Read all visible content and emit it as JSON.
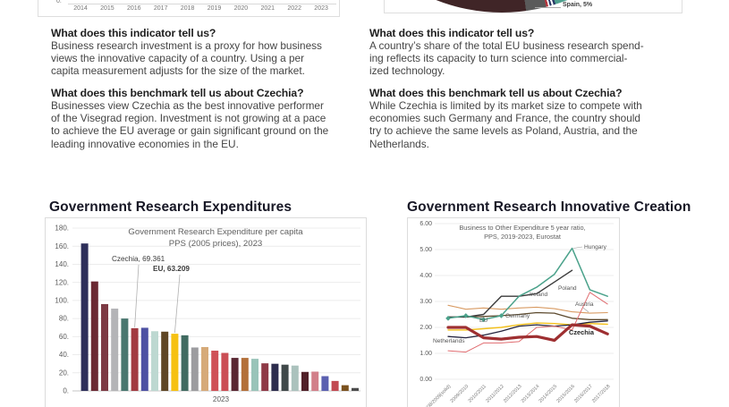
{
  "columns": {
    "left": {
      "indicator_heading": "What does this indicator tell us?",
      "indicator_body": "Business research investment is a proxy for how business\nviews the innovative capacity of a country. Using a per\ncapita measurement adjusts for the size of the market.",
      "benchmark_heading": "What does this benchmark tell us about Czechia?",
      "benchmark_body": "Businesses view Czechia as the best innovative performer\nof the Visegrad region. Investment is not growing at a pace\nto achieve the EU average or gain significant ground on the\nleading innovative economies in the EU."
    },
    "right": {
      "indicator_heading": "What does this indicator tell us?",
      "indicator_body": "A country’s share of the total EU business research spend-\ning reflects its capacity to turn science into commercial-\nized technology.",
      "benchmark_heading": "What does this benchmark tell us about Czechia?",
      "benchmark_body": "While Czechia is limited by its market size to compete with\neconomies such Germany and France, the country should\ntry to achieve the same levels as Poland, Austria, and the\nNetherlands."
    }
  },
  "sections": {
    "left_title": "Government Research Expenditures",
    "right_title": "Government Research Innovative Creation"
  },
  "top_left_chart": {
    "y_tick": "0.",
    "years": [
      "2014",
      "2015",
      "2016",
      "2017",
      "2018",
      "2019",
      "2020",
      "2021",
      "2022",
      "2023"
    ]
  },
  "top_right_chart": {
    "visible_label": "Spain, 5%",
    "slice_colors": {
      "maroon": "#402527",
      "gray": "#5a5a5a",
      "stripe_navy": "#2b3a67",
      "stripe_white": "#ffffff",
      "stripe_red": "#b5373f",
      "teal": "#4fa08f"
    }
  },
  "chart_data": [
    {
      "id": "business-rd-per-capita-cropped",
      "type": "bar",
      "note_visible_part": "x-axis only",
      "categories": [
        "2014",
        "2015",
        "2016",
        "2017",
        "2018",
        "2019",
        "2020",
        "2021",
        "2022",
        "2023"
      ],
      "visible_y_tick": "0."
    },
    {
      "id": "eu-business-research-share-pie-cropped",
      "type": "pie",
      "visible_labels": [
        {
          "label": "Spain",
          "value": 5,
          "text": "Spain, 5%"
        }
      ]
    },
    {
      "id": "gov-research-expenditure",
      "type": "bar",
      "title": "Government Research Expenditure per capita",
      "subtitle": "PPS (2005 prices), 2023",
      "xlabel": "2023",
      "ylim": [
        0,
        180
      ],
      "ytick_step": 20,
      "ytick_suffix": ".",
      "values": [
        163,
        121,
        96,
        91,
        80,
        69.361,
        69.8,
        66,
        65.5,
        63.209,
        61.5,
        48,
        48.5,
        44.5,
        42,
        36.5,
        36.5,
        35.5,
        30.5,
        30,
        29,
        28,
        21,
        21.3,
        16.3,
        11,
        6.3,
        3.2
      ],
      "colors": [
        "#2e2f5a",
        "#6b2933",
        "#7d3a44",
        "#b4b4b7",
        "#49776f",
        "#a23b41",
        "#4d51a3",
        "#bdd8d1",
        "#5f4625",
        "#f6c112",
        "#416b61",
        "#9c9c9f",
        "#d6aa79",
        "#cf5157",
        "#cb4e55",
        "#592732",
        "#b3703a",
        "#99c4b9",
        "#8f3a47",
        "#2d2d4e",
        "#40494a",
        "#abc2bd",
        "#512129",
        "#d2808a",
        "#5b60b0",
        "#c24a52",
        "#7b521f",
        "#4c4c4c"
      ],
      "annotations": [
        {
          "text": "Czechia, 69.361",
          "bar_index": 5,
          "bold": false
        },
        {
          "text": "EU, 63.209",
          "bar_index": 9,
          "bold": true
        }
      ]
    },
    {
      "id": "business-to-other-ratio",
      "type": "line",
      "title": "Business to Other Expenditure 5 year ratio,",
      "subtitle": "PPS, 2019-2023, Eurostat",
      "ylim": [
        0,
        6
      ],
      "ytick_step": 1,
      "x": [
        "2008/2009(solid)",
        "2009/2010",
        "2010/2011",
        "2011/2012",
        "2012/2013",
        "2013/2014",
        "2014/2015",
        "2015/2016",
        "2016/2017",
        "2017/2018"
      ],
      "series": [
        {
          "name": "Austria",
          "color": "#d89a62",
          "width": 1.1,
          "values": [
            2.85,
            2.7,
            2.75,
            2.7,
            2.75,
            2.78,
            2.72,
            2.6,
            2.55,
            2.57
          ]
        },
        {
          "name": "Germany",
          "color": "#5d4a2e",
          "width": 1.3,
          "values": [
            2.4,
            2.4,
            2.42,
            2.45,
            2.5,
            2.57,
            2.55,
            2.35,
            2.3,
            2.3
          ]
        },
        {
          "name": "EU",
          "color": "#f3c01d",
          "width": 1.4,
          "values": [
            1.9,
            1.9,
            1.95,
            2.0,
            2.1,
            2.17,
            2.15,
            2.1,
            2.15,
            2.12
          ]
        },
        {
          "name": "Netherlands",
          "color": "#24243e",
          "width": 1.3,
          "values": [
            1.65,
            1.6,
            1.7,
            1.85,
            2.05,
            2.1,
            2.05,
            2.1,
            2.2,
            2.25
          ]
        },
        {
          "name": "Poland",
          "color": "#e06c70",
          "width": 1.0,
          "values": [
            1.1,
            1.05,
            1.4,
            1.4,
            1.45,
            2.0,
            2.05,
            1.9,
            3.35,
            2.9
          ]
        },
        {
          "name": "Ireland",
          "color": "#3b3b3b",
          "width": 1.4,
          "values": [
            2.4,
            2.4,
            2.5,
            3.2,
            3.2,
            3.3,
            3.75,
            4.2,
            null,
            null
          ]
        },
        {
          "name": "Hungary",
          "color": "#4ba28b",
          "width": 1.5,
          "markers": true,
          "values": [
            2.35,
            2.45,
            2.3,
            2.45,
            3.2,
            3.55,
            4.05,
            5.05,
            3.45,
            3.2
          ]
        },
        {
          "name": "Czechia",
          "color": "#9e2f31",
          "width": 3.2,
          "bold_label": true,
          "values": [
            2.0,
            2.0,
            1.6,
            1.55,
            1.62,
            1.65,
            1.5,
            2.1,
            2.05,
            1.75
          ]
        }
      ]
    }
  ]
}
